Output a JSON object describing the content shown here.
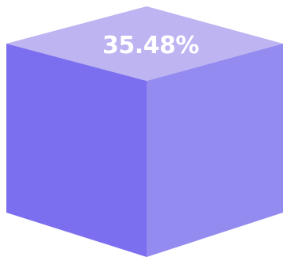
{
  "metric": {
    "value_text": "35.48%"
  },
  "colors": {
    "top_face": "#bdb4f1",
    "left_face": "#7b6fef",
    "right_face": "#948bf0",
    "label": "#ffffff"
  }
}
